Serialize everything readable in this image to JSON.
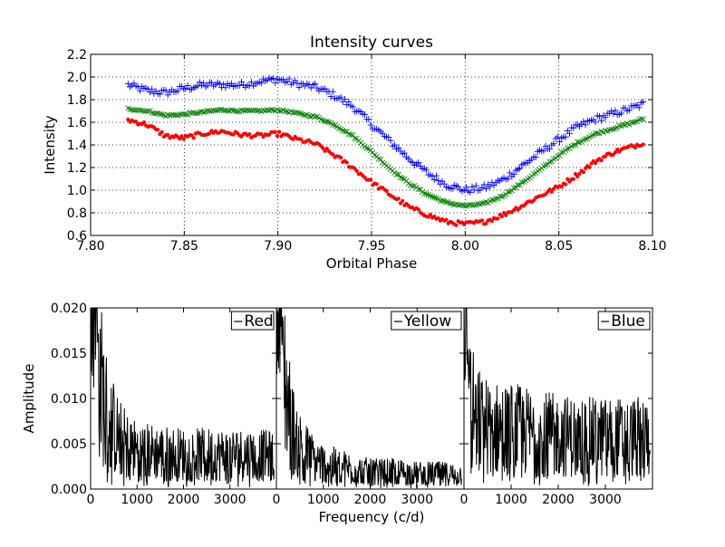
{
  "chart_data": [
    {
      "type": "scatter",
      "title": "Intensity curves",
      "xlabel": "Orbital Phase",
      "ylabel": "Intensity",
      "xlim": [
        7.8,
        8.1
      ],
      "ylim": [
        0.6,
        2.2
      ],
      "x_ticks": [
        "7.80",
        "7.85",
        "7.90",
        "7.95",
        "8.00",
        "8.05",
        "8.10"
      ],
      "y_ticks": [
        "0.6",
        "0.8",
        "1.0",
        "1.2",
        "1.4",
        "1.6",
        "1.8",
        "2.0",
        "2.2"
      ],
      "grid": true,
      "series": [
        {
          "color": "#0000ff",
          "marker": "plus",
          "x": [
            7.82,
            7.83,
            7.84,
            7.85,
            7.86,
            7.87,
            7.88,
            7.89,
            7.9,
            7.91,
            7.92,
            7.93,
            7.94,
            7.95,
            7.96,
            7.97,
            7.98,
            7.99,
            8.0,
            8.01,
            8.02,
            8.03,
            8.04,
            8.05,
            8.06,
            8.07,
            8.08,
            8.09,
            8.095
          ],
          "y": [
            1.93,
            1.88,
            1.86,
            1.9,
            1.93,
            1.93,
            1.93,
            1.96,
            1.98,
            1.94,
            1.91,
            1.84,
            1.74,
            1.58,
            1.43,
            1.28,
            1.15,
            1.05,
            1.0,
            1.02,
            1.09,
            1.21,
            1.33,
            1.45,
            1.56,
            1.63,
            1.68,
            1.73,
            1.76
          ]
        },
        {
          "color": "#008000",
          "marker": "x",
          "x": [
            7.82,
            7.83,
            7.84,
            7.85,
            7.86,
            7.87,
            7.88,
            7.89,
            7.9,
            7.91,
            7.92,
            7.93,
            7.94,
            7.95,
            7.96,
            7.97,
            7.98,
            7.99,
            8.0,
            8.01,
            8.02,
            8.03,
            8.04,
            8.05,
            8.06,
            8.07,
            8.08,
            8.09,
            8.095
          ],
          "y": [
            1.72,
            1.7,
            1.66,
            1.67,
            1.69,
            1.71,
            1.7,
            1.7,
            1.71,
            1.68,
            1.65,
            1.58,
            1.48,
            1.34,
            1.19,
            1.06,
            0.96,
            0.89,
            0.86,
            0.88,
            0.95,
            1.06,
            1.18,
            1.31,
            1.42,
            1.5,
            1.55,
            1.6,
            1.63
          ]
        },
        {
          "color": "#ff0000",
          "marker": "dot",
          "x": [
            7.82,
            7.83,
            7.84,
            7.85,
            7.86,
            7.87,
            7.88,
            7.89,
            7.9,
            7.91,
            7.92,
            7.93,
            7.94,
            7.95,
            7.96,
            7.97,
            7.98,
            7.99,
            8.0,
            8.01,
            8.02,
            8.03,
            8.04,
            8.05,
            8.06,
            8.07,
            8.08,
            8.09,
            8.095
          ],
          "y": [
            1.62,
            1.58,
            1.48,
            1.46,
            1.5,
            1.52,
            1.49,
            1.48,
            1.5,
            1.45,
            1.41,
            1.31,
            1.2,
            1.07,
            0.96,
            0.85,
            0.78,
            0.72,
            0.7,
            0.72,
            0.78,
            0.86,
            0.95,
            1.03,
            1.14,
            1.26,
            1.34,
            1.39,
            1.42
          ]
        }
      ]
    },
    {
      "type": "line",
      "xlabel": "Frequency (c/d)",
      "ylabel": "Amplitude",
      "ylim": [
        0.0,
        0.02
      ],
      "y_ticks": [
        "0.000",
        "0.005",
        "0.010",
        "0.015",
        "0.020"
      ],
      "grid": false,
      "panels": [
        {
          "legend": "Red",
          "legend_position": "top-right",
          "xlim": [
            0,
            4000
          ],
          "x_ticks": [
            "0",
            "1000",
            "2000",
            "3000"
          ],
          "x": [
            0,
            100,
            200,
            300,
            400,
            600,
            800,
            1000,
            1500,
            2000,
            2500,
            3000,
            3500,
            3900
          ],
          "y": [
            0.02,
            0.017,
            0.013,
            0.01,
            0.008,
            0.006,
            0.005,
            0.0045,
            0.0042,
            0.004,
            0.004,
            0.004,
            0.004,
            0.0038
          ],
          "color": "#000000"
        },
        {
          "legend": "Yellow",
          "legend_position": "top-right",
          "xlim": [
            0,
            4000
          ],
          "x_ticks": [
            "0",
            "1000",
            "2000",
            "3000"
          ],
          "x": [
            0,
            100,
            200,
            300,
            400,
            600,
            800,
            1000,
            1500,
            2000,
            2500,
            3000,
            3500,
            3900
          ],
          "y": [
            0.02,
            0.018,
            0.012,
            0.008,
            0.006,
            0.0045,
            0.0035,
            0.003,
            0.0025,
            0.002,
            0.002,
            0.0018,
            0.0018,
            0.0017
          ],
          "color": "#000000"
        },
        {
          "legend": "Blue",
          "legend_position": "top-right",
          "xlim": [
            0,
            4000
          ],
          "x_ticks": [
            "0",
            "1000",
            "2000",
            "3000"
          ],
          "x": [
            0,
            100,
            200,
            300,
            400,
            600,
            800,
            1000,
            1500,
            2000,
            2500,
            3000,
            3500,
            3900
          ],
          "y": [
            0.019,
            0.012,
            0.009,
            0.008,
            0.0075,
            0.007,
            0.007,
            0.007,
            0.0065,
            0.0062,
            0.006,
            0.006,
            0.006,
            0.006
          ],
          "color": "#000000"
        }
      ]
    }
  ]
}
